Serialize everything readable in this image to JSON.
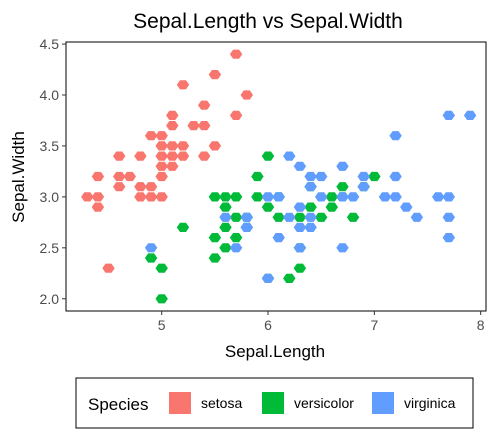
{
  "chart_data": {
    "type": "scatter",
    "marker": "hexagon",
    "title": "Sepal.Length vs Sepal.Width",
    "xlabel": "Sepal.Length",
    "ylabel": "Sepal.Width",
    "xlim": [
      4.1,
      8.05
    ],
    "ylim": [
      1.88,
      4.52
    ],
    "x_ticks": [
      5,
      6,
      7,
      8
    ],
    "x_tick_labels": [
      "5",
      "6",
      "7",
      "8"
    ],
    "y_ticks": [
      2.0,
      2.5,
      3.0,
      3.5,
      4.0,
      4.5
    ],
    "y_tick_labels": [
      "2.0",
      "2.5",
      "3.0",
      "3.5",
      "4.0",
      "4.5"
    ],
    "grid": false,
    "legend": {
      "title": "Species",
      "position": "bottom",
      "entries": [
        "setosa",
        "versicolor",
        "virginica"
      ]
    },
    "series": [
      {
        "name": "setosa",
        "color": "#F8766D",
        "points": [
          [
            4.3,
            3.0
          ],
          [
            4.4,
            2.9
          ],
          [
            4.4,
            3.0
          ],
          [
            4.4,
            3.2
          ],
          [
            4.5,
            2.3
          ],
          [
            4.6,
            3.1
          ],
          [
            4.6,
            3.2
          ],
          [
            4.6,
            3.4
          ],
          [
            4.7,
            3.2
          ],
          [
            4.8,
            3.0
          ],
          [
            4.8,
            3.1
          ],
          [
            4.8,
            3.4
          ],
          [
            4.9,
            3.0
          ],
          [
            4.9,
            3.1
          ],
          [
            4.9,
            3.6
          ],
          [
            5.0,
            3.0
          ],
          [
            5.0,
            3.2
          ],
          [
            5.0,
            3.3
          ],
          [
            5.0,
            3.4
          ],
          [
            5.0,
            3.5
          ],
          [
            5.0,
            3.6
          ],
          [
            5.1,
            3.3
          ],
          [
            5.1,
            3.4
          ],
          [
            5.1,
            3.5
          ],
          [
            5.1,
            3.7
          ],
          [
            5.1,
            3.8
          ],
          [
            5.2,
            3.4
          ],
          [
            5.2,
            3.5
          ],
          [
            5.2,
            4.1
          ],
          [
            5.3,
            3.7
          ],
          [
            5.4,
            3.4
          ],
          [
            5.4,
            3.7
          ],
          [
            5.4,
            3.9
          ],
          [
            5.5,
            3.5
          ],
          [
            5.5,
            4.2
          ],
          [
            5.7,
            3.8
          ],
          [
            5.7,
            4.4
          ],
          [
            5.8,
            4.0
          ]
        ]
      },
      {
        "name": "versicolor",
        "color": "#00BA38",
        "points": [
          [
            4.9,
            2.4
          ],
          [
            5.0,
            2.0
          ],
          [
            5.0,
            2.3
          ],
          [
            5.2,
            2.7
          ],
          [
            5.5,
            2.4
          ],
          [
            5.6,
            2.5
          ],
          [
            5.5,
            2.6
          ],
          [
            5.6,
            2.7
          ],
          [
            5.6,
            2.9
          ],
          [
            5.7,
            2.6
          ],
          [
            5.7,
            2.8
          ],
          [
            5.6,
            3.0
          ],
          [
            5.8,
            2.7
          ],
          [
            5.7,
            3.0
          ],
          [
            5.8,
            2.8
          ],
          [
            5.9,
            3.0
          ],
          [
            5.9,
            3.2
          ],
          [
            6.0,
            2.2
          ],
          [
            6.0,
            2.9
          ],
          [
            6.0,
            3.4
          ],
          [
            6.1,
            2.8
          ],
          [
            6.2,
            2.2
          ],
          [
            6.1,
            3.0
          ],
          [
            6.3,
            2.3
          ],
          [
            6.3,
            2.5
          ],
          [
            6.3,
            2.8
          ],
          [
            6.4,
            2.9
          ],
          [
            6.4,
            3.1
          ],
          [
            6.5,
            2.8
          ],
          [
            6.6,
            2.9
          ],
          [
            6.6,
            3.0
          ],
          [
            6.7,
            3.0
          ],
          [
            6.8,
            2.8
          ],
          [
            6.7,
            3.1
          ],
          [
            6.9,
            3.1
          ],
          [
            7.0,
            3.2
          ],
          [
            5.5,
            3.0
          ]
        ]
      },
      {
        "name": "virginica",
        "color": "#619CFF",
        "points": [
          [
            4.9,
            2.5
          ],
          [
            5.6,
            2.8
          ],
          [
            5.7,
            2.5
          ],
          [
            5.8,
            2.7
          ],
          [
            5.8,
            2.8
          ],
          [
            6.0,
            2.2
          ],
          [
            6.0,
            3.0
          ],
          [
            6.1,
            2.6
          ],
          [
            6.1,
            3.0
          ],
          [
            6.2,
            2.8
          ],
          [
            6.2,
            3.4
          ],
          [
            6.3,
            2.5
          ],
          [
            6.3,
            2.7
          ],
          [
            6.3,
            2.9
          ],
          [
            6.3,
            3.3
          ],
          [
            6.4,
            2.7
          ],
          [
            6.4,
            2.8
          ],
          [
            6.4,
            3.1
          ],
          [
            6.4,
            3.2
          ],
          [
            6.5,
            3.0
          ],
          [
            6.5,
            3.2
          ],
          [
            6.7,
            2.5
          ],
          [
            6.7,
            3.0
          ],
          [
            6.7,
            3.3
          ],
          [
            6.8,
            3.0
          ],
          [
            6.9,
            3.1
          ],
          [
            6.9,
            3.2
          ],
          [
            7.1,
            3.0
          ],
          [
            7.2,
            3.0
          ],
          [
            7.2,
            3.2
          ],
          [
            7.2,
            3.6
          ],
          [
            7.3,
            2.9
          ],
          [
            7.4,
            2.8
          ],
          [
            7.6,
            3.0
          ],
          [
            7.7,
            2.6
          ],
          [
            7.7,
            2.8
          ],
          [
            7.7,
            3.0
          ],
          [
            7.7,
            3.8
          ],
          [
            7.9,
            3.8
          ]
        ]
      }
    ]
  }
}
